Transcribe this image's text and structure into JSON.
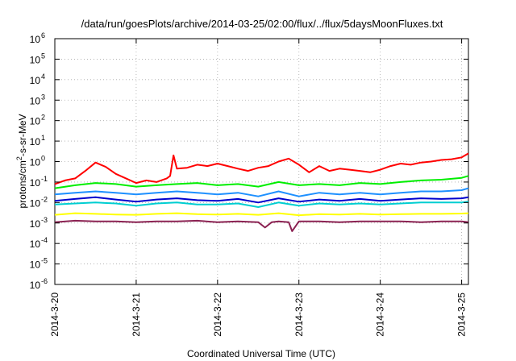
{
  "chart_data": {
    "type": "line",
    "title": "/data/run/goesPlots/archive/2014-03-25/02:00/flux/../flux/5daysMoonFluxes.txt",
    "xlabel": "Coordinated Universal Time (UTC)",
    "ylabel": "protons/cm²-s-sr-MeV",
    "ylabel_parts": {
      "prefix": "protons/cm",
      "sup": "2",
      "suffix": "-s-sr-MeV"
    },
    "yscale": "log",
    "ylim": [
      1e-06,
      1000000.0
    ],
    "y_ticks": [
      {
        "base": "10",
        "exp": "-6",
        "value": 1e-06
      },
      {
        "base": "10",
        "exp": "-5",
        "value": 1e-05
      },
      {
        "base": "10",
        "exp": "-4",
        "value": 0.0001
      },
      {
        "base": "10",
        "exp": "-3",
        "value": 0.001
      },
      {
        "base": "10",
        "exp": "-2",
        "value": 0.01
      },
      {
        "base": "10",
        "exp": "-1",
        "value": 0.1
      },
      {
        "base": "10",
        "exp": "0",
        "value": 1
      },
      {
        "base": "10",
        "exp": "1",
        "value": 10
      },
      {
        "base": "10",
        "exp": "2",
        "value": 100
      },
      {
        "base": "10",
        "exp": "3",
        "value": 1000
      },
      {
        "base": "10",
        "exp": "4",
        "value": 10000
      },
      {
        "base": "10",
        "exp": "5",
        "value": 100000
      },
      {
        "base": "10",
        "exp": "6",
        "value": 1000000
      }
    ],
    "xlim": [
      "2014-3-20",
      "2014-3-25 02:00"
    ],
    "x_ticks": [
      "2014-3-20",
      "2014-3-21",
      "2014-3-22",
      "2014-3-23",
      "2014-3-24",
      "2014-3-25"
    ],
    "grid": true,
    "series": [
      {
        "color": "#ff0000",
        "x": [
          "2014-3-20 00:00",
          "2014-3-20 03:00",
          "2014-3-20 06:00",
          "2014-3-20 09:00",
          "2014-3-20 12:00",
          "2014-3-20 15:00",
          "2014-3-20 18:00",
          "2014-3-20 21:00",
          "2014-3-21 00:00",
          "2014-3-21 03:00",
          "2014-3-21 06:00",
          "2014-3-21 09:00",
          "2014-3-21 10:00",
          "2014-3-21 11:00",
          "2014-3-21 12:00",
          "2014-3-21 15:00",
          "2014-3-21 18:00",
          "2014-3-21 21:00",
          "2014-3-22 00:00",
          "2014-3-22 03:00",
          "2014-3-22 06:00",
          "2014-3-22 09:00",
          "2014-3-22 12:00",
          "2014-3-22 15:00",
          "2014-3-22 18:00",
          "2014-3-22 21:00",
          "2014-3-23 00:00",
          "2014-3-23 03:00",
          "2014-3-23 06:00",
          "2014-3-23 09:00",
          "2014-3-23 12:00",
          "2014-3-23 15:00",
          "2014-3-23 18:00",
          "2014-3-23 21:00",
          "2014-3-24 00:00",
          "2014-3-24 03:00",
          "2014-3-24 06:00",
          "2014-3-24 09:00",
          "2014-3-24 12:00",
          "2014-3-24 15:00",
          "2014-3-24 18:00",
          "2014-3-24 21:00",
          "2014-3-25 00:00",
          "2014-3-25 02:00"
        ],
        "y": [
          0.08,
          0.12,
          0.15,
          0.35,
          0.9,
          0.55,
          0.25,
          0.15,
          0.09,
          0.12,
          0.1,
          0.15,
          0.2,
          2.0,
          0.45,
          0.5,
          0.7,
          0.6,
          0.8,
          0.6,
          0.45,
          0.35,
          0.5,
          0.6,
          1.0,
          1.4,
          0.7,
          0.3,
          0.6,
          0.35,
          0.45,
          0.4,
          0.35,
          0.3,
          0.4,
          0.6,
          0.8,
          0.7,
          0.9,
          1.0,
          1.2,
          1.3,
          1.6,
          2.5
        ]
      },
      {
        "color": "#00ee00",
        "x": [
          "2014-3-20 00:00",
          "2014-3-20 06:00",
          "2014-3-20 12:00",
          "2014-3-20 18:00",
          "2014-3-21 00:00",
          "2014-3-21 06:00",
          "2014-3-21 12:00",
          "2014-3-21 18:00",
          "2014-3-22 00:00",
          "2014-3-22 06:00",
          "2014-3-22 12:00",
          "2014-3-22 18:00",
          "2014-3-23 00:00",
          "2014-3-23 06:00",
          "2014-3-23 12:00",
          "2014-3-23 18:00",
          "2014-3-24 00:00",
          "2014-3-24 06:00",
          "2014-3-24 12:00",
          "2014-3-24 18:00",
          "2014-3-25 00:00",
          "2014-3-25 02:00"
        ],
        "y": [
          0.05,
          0.07,
          0.09,
          0.08,
          0.06,
          0.07,
          0.08,
          0.09,
          0.07,
          0.08,
          0.06,
          0.1,
          0.07,
          0.08,
          0.07,
          0.09,
          0.08,
          0.1,
          0.12,
          0.13,
          0.16,
          0.2
        ]
      },
      {
        "color": "#1e90ff",
        "x": [
          "2014-3-20 00:00",
          "2014-3-20 06:00",
          "2014-3-20 12:00",
          "2014-3-20 18:00",
          "2014-3-21 00:00",
          "2014-3-21 06:00",
          "2014-3-21 12:00",
          "2014-3-21 18:00",
          "2014-3-22 00:00",
          "2014-3-22 06:00",
          "2014-3-22 12:00",
          "2014-3-22 18:00",
          "2014-3-23 00:00",
          "2014-3-23 06:00",
          "2014-3-23 12:00",
          "2014-3-23 18:00",
          "2014-3-24 00:00",
          "2014-3-24 06:00",
          "2014-3-24 12:00",
          "2014-3-24 18:00",
          "2014-3-25 00:00",
          "2014-3-25 02:00"
        ],
        "y": [
          0.025,
          0.03,
          0.035,
          0.03,
          0.025,
          0.03,
          0.035,
          0.03,
          0.025,
          0.03,
          0.02,
          0.035,
          0.02,
          0.03,
          0.025,
          0.03,
          0.025,
          0.03,
          0.035,
          0.035,
          0.04,
          0.05
        ]
      },
      {
        "color": "#0000cd",
        "x": [
          "2014-3-20 00:00",
          "2014-3-20 06:00",
          "2014-3-20 12:00",
          "2014-3-20 18:00",
          "2014-3-21 00:00",
          "2014-3-21 06:00",
          "2014-3-21 12:00",
          "2014-3-21 18:00",
          "2014-3-22 00:00",
          "2014-3-22 06:00",
          "2014-3-22 12:00",
          "2014-3-22 18:00",
          "2014-3-23 00:00",
          "2014-3-23 06:00",
          "2014-3-23 12:00",
          "2014-3-23 18:00",
          "2014-3-24 00:00",
          "2014-3-24 06:00",
          "2014-3-24 12:00",
          "2014-3-24 18:00",
          "2014-3-25 00:00",
          "2014-3-25 02:00"
        ],
        "y": [
          0.012,
          0.015,
          0.018,
          0.014,
          0.011,
          0.014,
          0.016,
          0.013,
          0.012,
          0.015,
          0.01,
          0.016,
          0.011,
          0.014,
          0.012,
          0.015,
          0.012,
          0.014,
          0.016,
          0.015,
          0.016,
          0.018
        ]
      },
      {
        "color": "#00ced1",
        "x": [
          "2014-3-20 00:00",
          "2014-3-20 06:00",
          "2014-3-20 12:00",
          "2014-3-20 18:00",
          "2014-3-21 00:00",
          "2014-3-21 06:00",
          "2014-3-21 12:00",
          "2014-3-21 18:00",
          "2014-3-22 00:00",
          "2014-3-22 06:00",
          "2014-3-22 12:00",
          "2014-3-22 18:00",
          "2014-3-23 00:00",
          "2014-3-23 06:00",
          "2014-3-23 12:00",
          "2014-3-23 18:00",
          "2014-3-24 00:00",
          "2014-3-24 06:00",
          "2014-3-24 12:00",
          "2014-3-24 18:00",
          "2014-3-25 00:00",
          "2014-3-25 02:00"
        ],
        "y": [
          0.008,
          0.009,
          0.01,
          0.009,
          0.007,
          0.009,
          0.01,
          0.008,
          0.008,
          0.009,
          0.006,
          0.01,
          0.007,
          0.009,
          0.008,
          0.009,
          0.008,
          0.009,
          0.01,
          0.01,
          0.01,
          0.011
        ]
      },
      {
        "color": "#ffff00",
        "x": [
          "2014-3-20 00:00",
          "2014-3-20 06:00",
          "2014-3-20 12:00",
          "2014-3-20 18:00",
          "2014-3-21 00:00",
          "2014-3-21 06:00",
          "2014-3-21 12:00",
          "2014-3-21 18:00",
          "2014-3-22 00:00",
          "2014-3-22 06:00",
          "2014-3-22 12:00",
          "2014-3-22 18:00",
          "2014-3-23 00:00",
          "2014-3-23 06:00",
          "2014-3-23 12:00",
          "2014-3-23 18:00",
          "2014-3-24 00:00",
          "2014-3-24 06:00",
          "2014-3-24 12:00",
          "2014-3-24 18:00",
          "2014-3-25 00:00",
          "2014-3-25 02:00"
        ],
        "y": [
          0.0025,
          0.003,
          0.0028,
          0.0026,
          0.0025,
          0.0028,
          0.003,
          0.0027,
          0.0026,
          0.0028,
          0.0025,
          0.003,
          0.0024,
          0.0027,
          0.0026,
          0.0028,
          0.0026,
          0.0027,
          0.0028,
          0.0028,
          0.0029,
          0.003
        ]
      },
      {
        "color": "#8b2252",
        "x": [
          "2014-3-20 00:00",
          "2014-3-20 06:00",
          "2014-3-20 12:00",
          "2014-3-20 18:00",
          "2014-3-21 00:00",
          "2014-3-21 06:00",
          "2014-3-21 12:00",
          "2014-3-21 18:00",
          "2014-3-22 00:00",
          "2014-3-22 06:00",
          "2014-3-22 12:00",
          "2014-3-22 14:00",
          "2014-3-22 16:00",
          "2014-3-22 18:00",
          "2014-3-22 21:00",
          "2014-3-22 22:00",
          "2014-3-23 00:00",
          "2014-3-23 06:00",
          "2014-3-23 12:00",
          "2014-3-23 18:00",
          "2014-3-24 00:00",
          "2014-3-24 06:00",
          "2014-3-24 12:00",
          "2014-3-24 18:00",
          "2014-3-25 00:00",
          "2014-3-25 02:00"
        ],
        "y": [
          0.0011,
          0.0013,
          0.0012,
          0.0012,
          0.0011,
          0.0012,
          0.0012,
          0.0013,
          0.0011,
          0.0012,
          0.0011,
          0.0006,
          0.0011,
          0.0012,
          0.0011,
          0.0004,
          0.0012,
          0.0012,
          0.0011,
          0.0012,
          0.0012,
          0.0012,
          0.0011,
          0.0012,
          0.0012,
          0.0011
        ]
      }
    ]
  }
}
